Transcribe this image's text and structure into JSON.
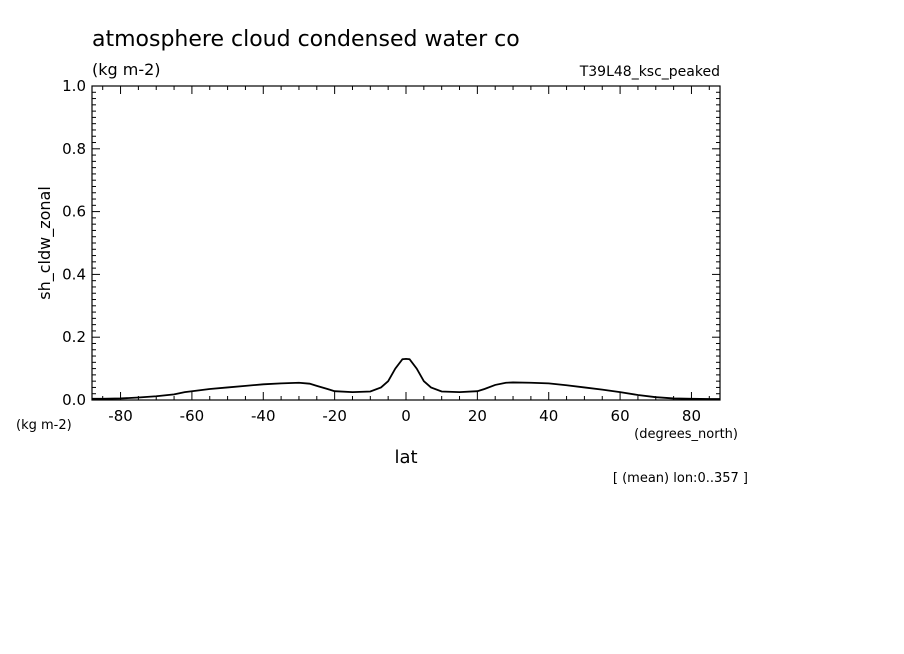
{
  "chart_data": {
    "type": "line",
    "title": "atmosphere cloud condensed water co",
    "subtitle_units": "(kg m-2)",
    "run_label": "T39L48_ksc_peaked",
    "ylabel": "sh_cldw_zonal",
    "y_units": "(kg m-2)",
    "xlabel": "lat",
    "x_units": "(degrees_north)",
    "footnote": "[ (mean) lon:0..357 ]",
    "xlim": [
      -88,
      88
    ],
    "ylim": [
      0,
      1
    ],
    "x_ticks": [
      -80,
      -60,
      -40,
      -20,
      0,
      20,
      40,
      60,
      80
    ],
    "x_tick_labels": [
      "-80",
      "-60",
      "-40",
      "-20",
      "0",
      "20",
      "40",
      "60",
      "80"
    ],
    "y_ticks": [
      0,
      0.2,
      0.4,
      0.6,
      0.8,
      1.0
    ],
    "y_tick_labels": [
      "0.0",
      "0.2",
      "0.4",
      "0.6",
      "0.8",
      "1.0"
    ],
    "grid": false,
    "series": [
      {
        "color": "#000000",
        "x": [
          -88,
          -85,
          -80,
          -75,
          -70,
          -65,
          -62,
          -60,
          -55,
          -50,
          -45,
          -40,
          -35,
          -30,
          -27,
          -25,
          -22,
          -20,
          -15,
          -10,
          -7,
          -5,
          -3,
          -1,
          0,
          1,
          3,
          5,
          7,
          10,
          15,
          20,
          22,
          25,
          28,
          30,
          35,
          40,
          45,
          50,
          55,
          60,
          65,
          70,
          75,
          80,
          85,
          88
        ],
        "y": [
          0.004,
          0.004,
          0.005,
          0.008,
          0.012,
          0.018,
          0.025,
          0.028,
          0.035,
          0.04,
          0.045,
          0.05,
          0.053,
          0.055,
          0.052,
          0.045,
          0.035,
          0.028,
          0.025,
          0.027,
          0.04,
          0.06,
          0.1,
          0.13,
          0.131,
          0.13,
          0.1,
          0.06,
          0.04,
          0.027,
          0.025,
          0.028,
          0.035,
          0.048,
          0.055,
          0.056,
          0.055,
          0.053,
          0.047,
          0.04,
          0.033,
          0.025,
          0.016,
          0.009,
          0.005,
          0.004,
          0.003,
          0.003
        ]
      }
    ]
  }
}
